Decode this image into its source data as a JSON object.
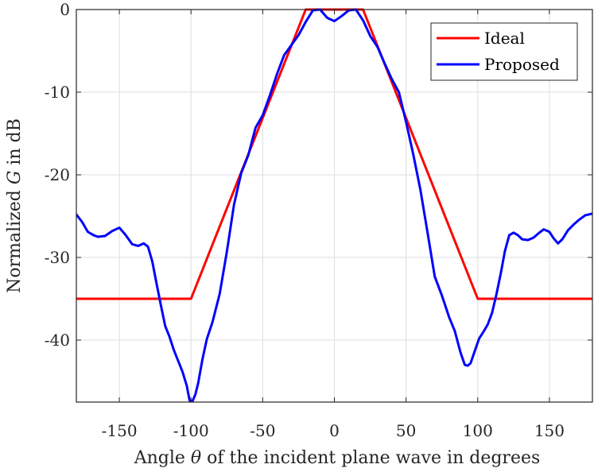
{
  "chart_data": {
    "type": "line",
    "title": "",
    "xlabel_parts": [
      "Angle ",
      "θ",
      " of the incident plane wave in degrees"
    ],
    "ylabel_parts": [
      "Normalized ",
      "G",
      " in dB"
    ],
    "xlim": [
      -180,
      180
    ],
    "ylim": [
      -47.5,
      0
    ],
    "xticks": [
      -150,
      -100,
      -50,
      0,
      50,
      100,
      150
    ],
    "yticks": [
      0,
      -10,
      -20,
      -30,
      -40
    ],
    "grid": true,
    "legend_position": "top-right",
    "series": [
      {
        "name": "Ideal",
        "color": "#ff0000",
        "x": [
          -180,
          -100,
          -20,
          20,
          100,
          180
        ],
        "y": [
          -35,
          -35,
          0,
          0,
          -35,
          -35
        ]
      },
      {
        "name": "Proposed",
        "color": "#0000ff",
        "x": [
          -180,
          -176,
          -172,
          -168,
          -165,
          -160,
          -155,
          -150,
          -146,
          -141,
          -137,
          -133,
          -130,
          -127,
          -124,
          -121,
          -118,
          -115,
          -112,
          -109,
          -106,
          -103,
          -101,
          -99,
          -97,
          -95,
          -92,
          -89,
          -85,
          -80,
          -75,
          -70,
          -65,
          -60,
          -55,
          -50,
          -45,
          -40,
          -35,
          -30,
          -25,
          -20,
          -15,
          -10,
          -5,
          0,
          5,
          10,
          15,
          20,
          25,
          30,
          35,
          40,
          45,
          50,
          55,
          60,
          65,
          70,
          75,
          80,
          84,
          88,
          91,
          93,
          95,
          98,
          101,
          104,
          107,
          110,
          113,
          116,
          119,
          122,
          125,
          128,
          131,
          135,
          139,
          143,
          146,
          150,
          153,
          156,
          159,
          163,
          167,
          171,
          175,
          180
        ],
        "y": [
          -24.8,
          -25.7,
          -26.9,
          -27.3,
          -27.5,
          -27.4,
          -26.8,
          -26.4,
          -27.2,
          -28.4,
          -28.6,
          -28.3,
          -28.7,
          -30.5,
          -33.2,
          -35.8,
          -38.3,
          -39.6,
          -41.2,
          -42.5,
          -43.8,
          -45.5,
          -47.3,
          -47.4,
          -46.6,
          -45.2,
          -42.3,
          -39.9,
          -37.8,
          -34.4,
          -29.3,
          -23.6,
          -19.8,
          -17.6,
          -14.3,
          -12.8,
          -10.4,
          -7.8,
          -5.5,
          -4.3,
          -3.1,
          -1.5,
          -0.1,
          0,
          -1.0,
          -1.4,
          -0.8,
          -0.1,
          0,
          -1.3,
          -3.2,
          -4.5,
          -6.5,
          -8.4,
          -10.0,
          -13.6,
          -17.5,
          -21.8,
          -27.0,
          -32.3,
          -34.6,
          -37.2,
          -38.9,
          -41.5,
          -43.0,
          -43.1,
          -42.8,
          -41.3,
          -39.8,
          -39.0,
          -38.1,
          -36.7,
          -34.5,
          -32.0,
          -29.2,
          -27.3,
          -27.0,
          -27.3,
          -27.8,
          -27.9,
          -27.6,
          -27.0,
          -26.6,
          -26.9,
          -27.7,
          -28.3,
          -27.8,
          -26.7,
          -26.0,
          -25.4,
          -24.9,
          -24.7
        ]
      }
    ]
  }
}
